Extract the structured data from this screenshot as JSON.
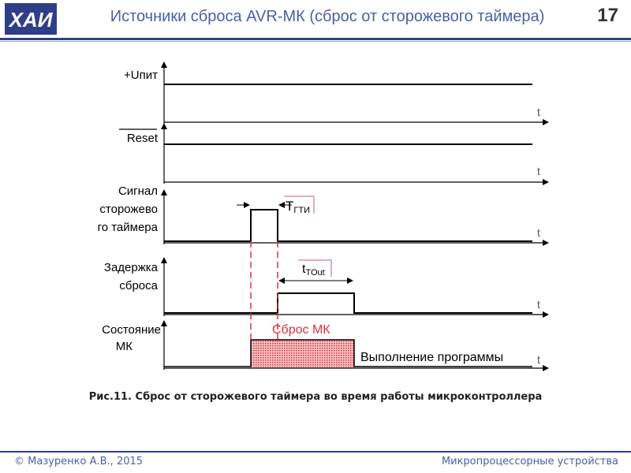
{
  "header": {
    "logo_text": "ХАИ",
    "title": "Источники сброса AVR-МК (сброс от сторожевого таймера)",
    "slide_number": "17"
  },
  "diagram": {
    "signals": [
      {
        "label": "+Uпит",
        "axis_label": "t"
      },
      {
        "label": "Reset",
        "axis_label": "t"
      },
      {
        "label_lines": [
          "Сигнал",
          "сторожево",
          "го таймера"
        ],
        "axis_label": "t"
      },
      {
        "label_lines": [
          "Задержка",
          "сброса"
        ],
        "axis_label": "t"
      },
      {
        "label_lines": [
          "Состояние",
          "МК"
        ],
        "axis_label": "t"
      }
    ],
    "annotations": {
      "wd_pulse_main": "T",
      "wd_pulse_sub": "ГТИ",
      "timeout_main": "t",
      "timeout_sub": "TOut",
      "reset_state": "Сброс МК",
      "program_state": "Выполнение программы"
    },
    "colors": {
      "reset_fill": "#d9343d",
      "dashed_line": "#d9343d",
      "annotation_line": "#c06070"
    }
  },
  "caption": "Рис.11. Сброс от сторожевого таймера во время работы микроконтроллера",
  "footer": {
    "author": "© Мазуренко А.В., 2015",
    "course": "Микропроцессорные устройства"
  }
}
